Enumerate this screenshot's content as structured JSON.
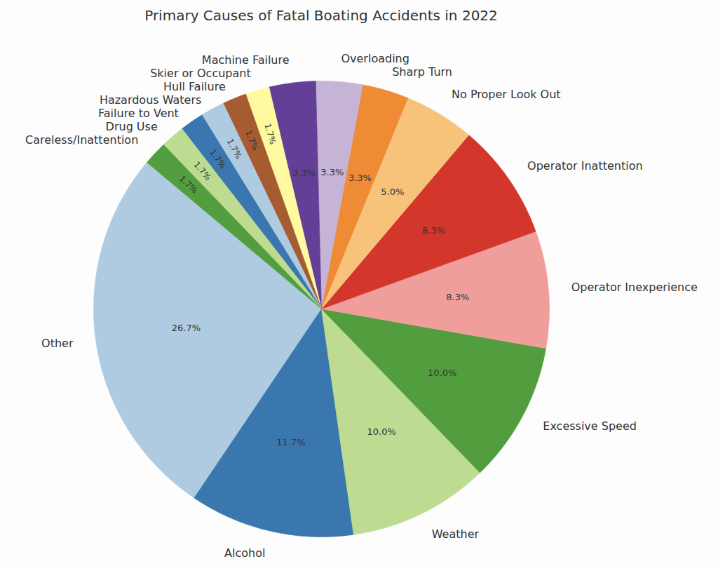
{
  "chart_data": {
    "type": "pie",
    "title": "Primary Causes of Fatal Boating Accidents in 2022",
    "categories": [
      "Other",
      "Alcohol",
      "Weather",
      "Excessive Speed",
      "Operator Inexperience",
      "Operator Inattention",
      "No Proper Look Out",
      "Sharp Turn",
      "Overloading",
      "Machine Failure",
      "Skier or Occupant",
      "Hull Failure",
      "Hazardous Waters",
      "Failure to Vent",
      "Drug Use",
      "Careless/Inattention"
    ],
    "values": [
      26.7,
      11.7,
      10.0,
      10.0,
      8.3,
      8.3,
      5.0,
      3.3,
      3.3,
      3.3,
      1.7,
      1.7,
      1.7,
      1.7,
      1.7,
      1.7
    ],
    "value_labels": [
      "26.7%",
      "11.7%",
      "10.0%",
      "10.0%",
      "8.3%",
      "8.3%",
      "5.0%",
      "3.3%",
      "3.3%",
      "3.3%",
      "1.7%",
      "1.7%",
      "1.7%",
      "1.7%",
      "1.7%",
      "1.7%"
    ],
    "colors": [
      "#aecbe1",
      "#3a77af",
      "#bddc91",
      "#529e3f",
      "#f09e9c",
      "#d3362b",
      "#f7c27a",
      "#ef8b35",
      "#c6b4d6",
      "#633f97",
      "#fffa9f",
      "#a65b30",
      "#aecbe1",
      "#3a77af",
      "#bddc91",
      "#529e3f"
    ],
    "data_labels": true
  }
}
